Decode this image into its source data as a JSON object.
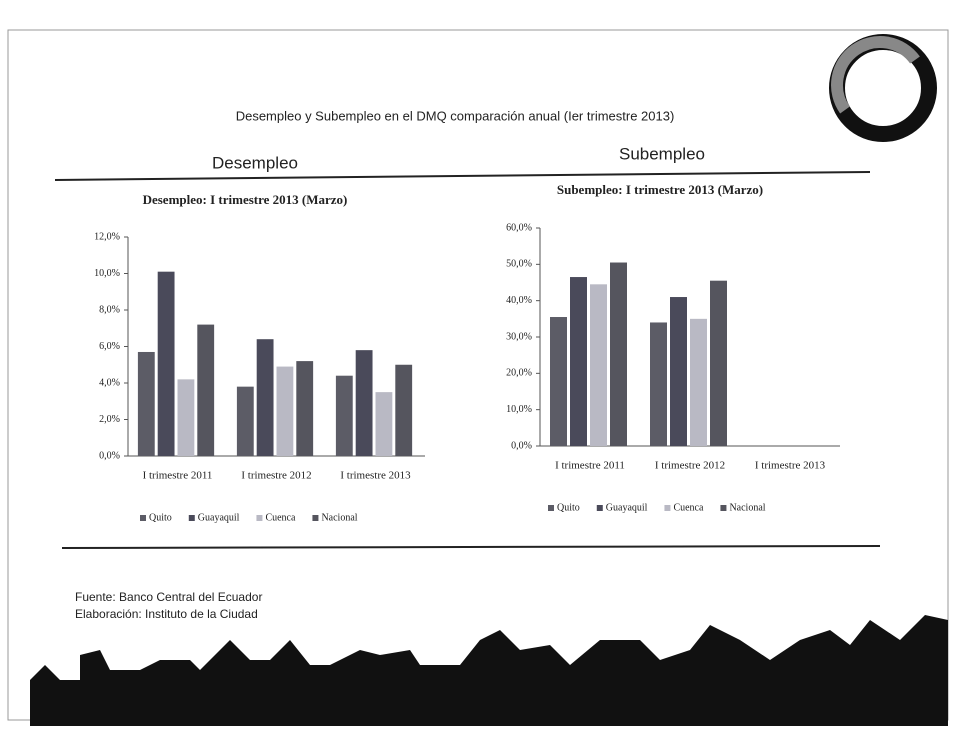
{
  "title": "Desempleo y Subempleo en el DMQ comparación anual (Ier trimestre 2013)",
  "section_titles": [
    "Desempleo",
    "Subempleo"
  ],
  "source": [
    "Fuente: Banco Central del Ecuador",
    "Elaboración: Instituto de la Ciudad"
  ],
  "chart_data": [
    {
      "type": "bar",
      "title": "Desempleo: I trimestre 2013 (Marzo)",
      "categories": [
        "I trimestre 2011",
        "I trimestre 2012",
        "I trimestre 2013"
      ],
      "series": [
        {
          "name": "Quito",
          "color": "#5c5c66",
          "values": [
            5.7,
            3.8,
            4.4
          ]
        },
        {
          "name": "Guayaquil",
          "color": "#4a4a5a",
          "values": [
            10.1,
            6.4,
            5.8
          ]
        },
        {
          "name": "Cuenca",
          "color": "#b9b9c4",
          "values": [
            4.2,
            4.9,
            3.5
          ]
        },
        {
          "name": "Nacional",
          "color": "#55555e",
          "values": [
            7.2,
            5.2,
            5.0
          ]
        }
      ],
      "ylim": [
        0,
        12
      ],
      "yticks": [
        {
          "value": 0,
          "label": "0,0%"
        },
        {
          "value": 2,
          "label": "2,0%"
        },
        {
          "value": 4,
          "label": "4,0%"
        },
        {
          "value": 6,
          "label": "6,0%"
        },
        {
          "value": 8,
          "label": "8,0%"
        },
        {
          "value": 10,
          "label": "10,0%"
        },
        {
          "value": 12,
          "label": "12,0%"
        }
      ]
    },
    {
      "type": "bar",
      "title": "Subempleo: I trimestre 2013 (Marzo)",
      "categories": [
        "I trimestre 2011",
        "I trimestre 2012",
        "I trimestre 2013"
      ],
      "series": [
        {
          "name": "Quito",
          "color": "#5c5c66",
          "values": [
            35.5,
            34,
            null
          ]
        },
        {
          "name": "Guayaquil",
          "color": "#4a4a5a",
          "values": [
            46.5,
            41,
            null
          ]
        },
        {
          "name": "Cuenca",
          "color": "#b9b9c4",
          "values": [
            44.5,
            35,
            null
          ]
        },
        {
          "name": "Nacional",
          "color": "#55555e",
          "values": [
            50.5,
            45.5,
            null
          ]
        }
      ],
      "ylim": [
        0,
        60
      ],
      "yticks": [
        {
          "value": 0,
          "label": "0,0%"
        },
        {
          "value": 10,
          "label": "10,0%"
        },
        {
          "value": 20,
          "label": "20,0%"
        },
        {
          "value": 30,
          "label": "30,0%"
        },
        {
          "value": 40,
          "label": "40,0%"
        },
        {
          "value": 50,
          "label": "50,0%"
        },
        {
          "value": 60,
          "label": "60,0%"
        }
      ]
    }
  ]
}
